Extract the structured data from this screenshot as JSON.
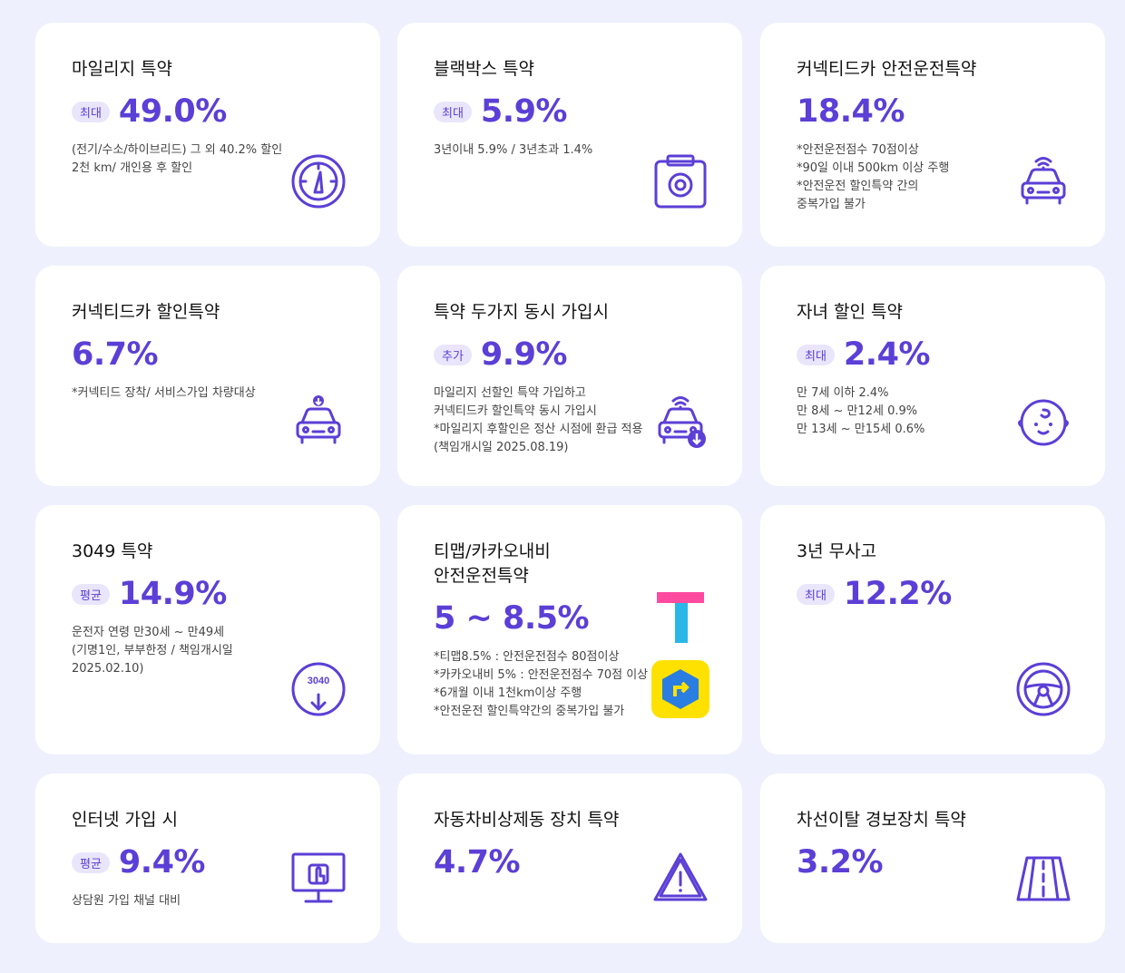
{
  "cards": [
    {
      "title": "마일리지 특약",
      "badge": "최대",
      "value": "49.0%",
      "notes": [
        "(전기/수소/하이브리드) 그 외 40.2% 할인",
        "2천 km/ 개인용 후 할인"
      ]
    },
    {
      "title": "블랙박스 특약",
      "badge": "최대",
      "value": "5.9%",
      "notes": [
        "3년이내 5.9% / 3년초과 1.4%"
      ]
    },
    {
      "title": "커넥티드카 안전운전특약",
      "value": "18.4%",
      "notes": [
        "*안전운전점수 70점이상",
        "*90일 이내 500km 이상 주행",
        "*안전운전 할인특약 간의",
        "중복가입 불가"
      ]
    },
    {
      "title": "커넥티드카 할인특약",
      "value": "6.7%",
      "notes": [
        "*커넥티드 장착/ 서비스가입 차량대상"
      ]
    },
    {
      "title": "특약 두가지 동시 가입시",
      "badge": "추가",
      "value": "9.9%",
      "notes": [
        "마일리지 선할인 특약 가입하고",
        "커넥티드카 할인특약 동시 가입시",
        "*마일리지 후할인은 정산 시점에 환급 적용",
        "(책임개시일 2025.08.19)"
      ]
    },
    {
      "title": "자녀 할인 특약",
      "badge": "최대",
      "value": "2.4%",
      "notes": [
        "만 7세 이하 2.4%",
        "만 8세 ~ 만12세 0.9%",
        "만 13세 ~ 만15세 0.6%"
      ]
    },
    {
      "title": "3049 특약",
      "badge": "평균",
      "value": "14.9%",
      "notes": [
        "운전자 연령 만30세 ~ 만49세",
        "(기명1인, 부부한정 / 책임개시일",
        "2025.02.10)"
      ],
      "icon_label": "3040"
    },
    {
      "title": "티맵/카카오내비\n안전운전특약",
      "value": "5 ~ 8.5%",
      "notes": [
        "*티맵8.5% : 안전운전점수 80점이상",
        "*카카오내비 5% : 안전운전점수 70점 이상",
        "*6개월 이내 1천km이상 주행",
        "*안전운전 할인특약간의 중복가입 불가"
      ]
    },
    {
      "title": "3년 무사고",
      "badge": "최대",
      "value": "12.2%"
    },
    {
      "title": "인터넷 가입 시",
      "badge": "평균",
      "value": "9.4%",
      "notes": [
        "상담원 가입 채널 대비"
      ]
    },
    {
      "title": "자동차비상제동 장치 특약",
      "value": "4.7%"
    },
    {
      "title": "차선이탈 경보장치 특약",
      "value": "3.2%"
    }
  ]
}
